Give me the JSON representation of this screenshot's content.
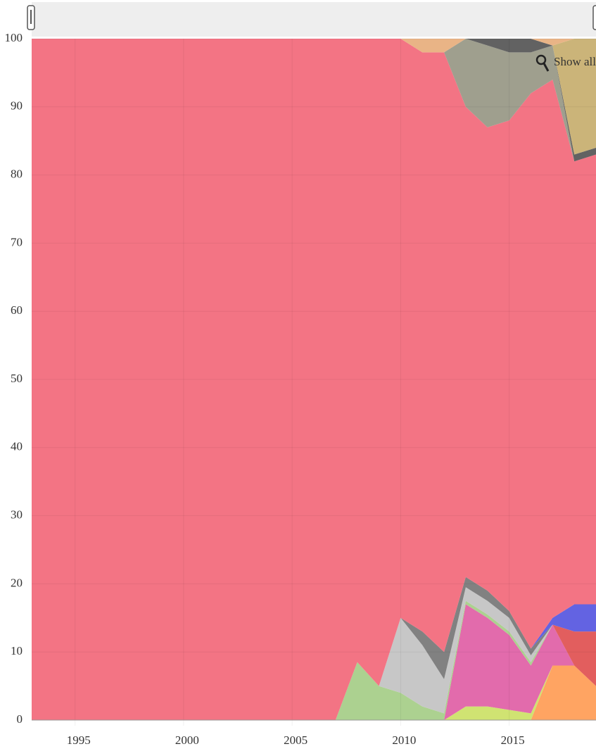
{
  "chart_data": {
    "type": "stacked_area",
    "x": [
      1993,
      1994,
      1995,
      1996,
      1997,
      1998,
      1999,
      2000,
      2001,
      2002,
      2003,
      2004,
      2005,
      2006,
      2007,
      2008,
      2009,
      2010,
      2011,
      2012,
      2013,
      2014,
      2015,
      2016,
      2017,
      2018,
      2019
    ],
    "xlim": [
      1993,
      2019
    ],
    "xticks": [
      1995,
      2000,
      2005,
      2010,
      2015
    ],
    "ylim": [
      0,
      100
    ],
    "yticks": [
      0,
      10,
      20,
      30,
      40,
      50,
      60,
      70,
      80,
      90,
      100
    ],
    "grid": true,
    "series": [
      {
        "color": "#ff9f5a",
        "values": [
          0,
          0,
          0,
          0,
          0,
          0,
          0,
          0,
          0,
          0,
          0,
          0,
          0,
          0,
          0,
          0,
          0,
          0,
          0,
          0,
          0,
          0,
          0,
          0,
          8,
          8,
          5
        ]
      },
      {
        "color": "#cde26a",
        "values": [
          0,
          0,
          0,
          0,
          0,
          0,
          0,
          0,
          0,
          0,
          0,
          0,
          0,
          0,
          0,
          0,
          0,
          0,
          0,
          0,
          2,
          2,
          1.5,
          1,
          0,
          0,
          0
        ]
      },
      {
        "color": "#e063a8",
        "values": [
          0,
          0,
          0,
          0,
          0,
          0,
          0,
          0,
          0,
          0,
          0,
          0,
          0,
          0,
          0,
          0,
          0,
          0,
          0,
          0,
          15,
          13,
          11,
          7,
          6,
          0,
          0
        ]
      },
      {
        "color": "#e05555",
        "values": [
          0,
          0,
          0,
          0,
          0,
          0,
          0,
          0,
          0,
          0,
          0,
          0,
          0,
          0,
          0,
          0,
          0,
          0,
          0,
          0,
          0,
          0,
          0,
          0,
          0,
          5,
          8
        ]
      },
      {
        "color": "#a8cf8a",
        "values": [
          0,
          0,
          0,
          0,
          0,
          0,
          0,
          0,
          0,
          0,
          0,
          0,
          0,
          0,
          0,
          8.5,
          5,
          4,
          2,
          1,
          0.5,
          0.5,
          0.5,
          0.5,
          0,
          0,
          0
        ]
      },
      {
        "color": "#c4c4c4",
        "values": [
          0,
          0,
          0,
          0,
          0,
          0,
          0,
          0,
          0,
          0,
          0,
          0,
          0,
          0,
          0,
          0,
          0,
          11,
          9,
          5,
          2,
          2,
          2,
          1,
          0,
          0,
          0
        ]
      },
      {
        "color": "#7a7a7a",
        "values": [
          0,
          0,
          0,
          0,
          0,
          0,
          0,
          0,
          0,
          0,
          0,
          0,
          0,
          0,
          0,
          0,
          0,
          0,
          2,
          4,
          1.5,
          1.5,
          1,
          1,
          0,
          0,
          0
        ]
      },
      {
        "color": "#5b5be0",
        "values": [
          0,
          0,
          0,
          0,
          0,
          0,
          0,
          0,
          0,
          0,
          0,
          0,
          0,
          0,
          0,
          0,
          0,
          0,
          0,
          0,
          0,
          0,
          0,
          0,
          1,
          4,
          4
        ]
      },
      {
        "color": "#f26d7d",
        "values": [
          100,
          100,
          100,
          100,
          100,
          100,
          100,
          100,
          100,
          100,
          100,
          100,
          100,
          100,
          100,
          91.5,
          95,
          85,
          85,
          88,
          69,
          68,
          72,
          81.5,
          79,
          65,
          66
        ]
      },
      {
        "color": "#9a9a88",
        "values": [
          0,
          0,
          0,
          0,
          0,
          0,
          0,
          0,
          0,
          0,
          0,
          0,
          0,
          0,
          0,
          0,
          0,
          0,
          0,
          0,
          10,
          12,
          10,
          6,
          5,
          0,
          0
        ]
      },
      {
        "color": "#5a5a5a",
        "values": [
          0,
          0,
          0,
          0,
          0,
          0,
          0,
          0,
          0,
          0,
          0,
          0,
          0,
          0,
          0,
          0,
          0,
          0,
          0,
          0,
          0,
          1,
          2,
          2,
          0,
          1,
          1
        ]
      },
      {
        "color": "#c8b072",
        "values": [
          0,
          0,
          0,
          0,
          0,
          0,
          0,
          0,
          0,
          0,
          0,
          0,
          0,
          0,
          0,
          0,
          0,
          0,
          0,
          0,
          0,
          0,
          0,
          0,
          0,
          17,
          16
        ]
      },
      {
        "color": "#e8b080",
        "values": [
          0,
          0,
          0,
          0,
          0,
          0,
          0,
          0,
          0,
          0,
          0,
          0,
          0,
          0,
          0,
          0,
          0,
          0,
          2,
          2,
          0,
          0,
          0,
          0,
          1,
          0,
          0
        ]
      }
    ]
  },
  "ui": {
    "zoom_button": "Show all"
  }
}
